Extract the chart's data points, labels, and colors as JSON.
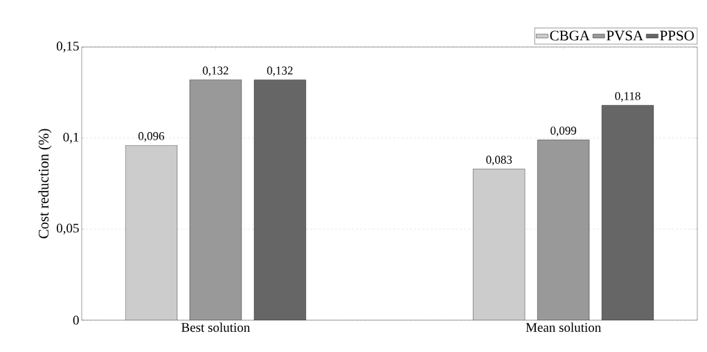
{
  "chart_data": {
    "type": "bar",
    "ylabel": "Cost reduction (%)",
    "categories": [
      "Best solution",
      "Mean solution"
    ],
    "series": [
      {
        "name": "CBGA",
        "color": "#cccccc",
        "values": [
          0.096,
          0.083
        ],
        "value_labels": [
          "0,096",
          "0,083"
        ]
      },
      {
        "name": "PVSA",
        "color": "#999999",
        "values": [
          0.132,
          0.099
        ],
        "value_labels": [
          "0,132",
          "0,099"
        ]
      },
      {
        "name": "PPSO",
        "color": "#666666",
        "values": [
          0.132,
          0.118
        ],
        "value_labels": [
          "0,132",
          "0,118"
        ]
      }
    ],
    "ylim": [
      0,
      0.15
    ],
    "yticks": [
      {
        "value": 0,
        "label": "0"
      },
      {
        "value": 0.05,
        "label": "0,05"
      },
      {
        "value": 0.1,
        "label": "0,1"
      },
      {
        "value": 0.15,
        "label": "0,15"
      }
    ],
    "grid": "y",
    "line_style": "dashed",
    "legend": "top right"
  }
}
